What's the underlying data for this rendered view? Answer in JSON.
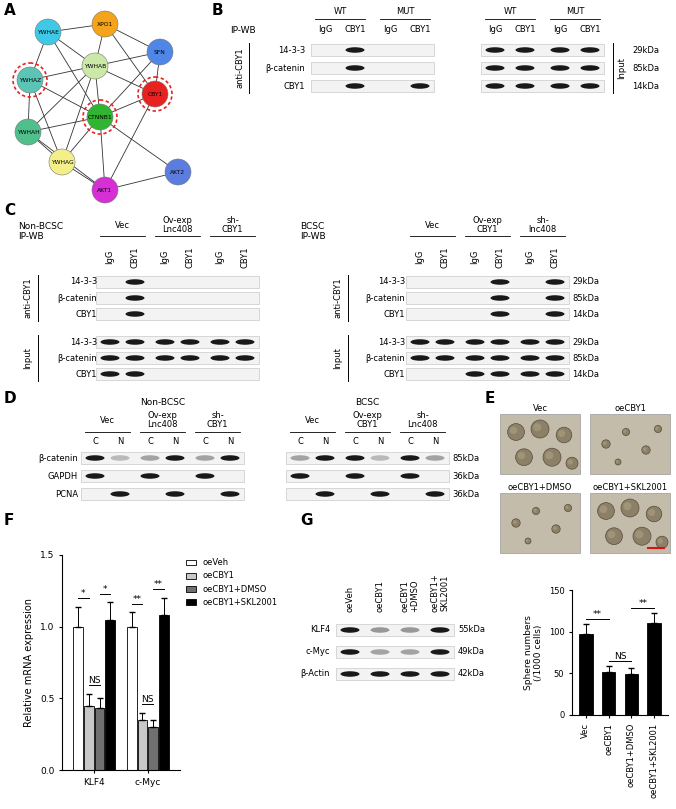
{
  "panel_letters": [
    "A",
    "B",
    "C",
    "D",
    "E",
    "F",
    "G"
  ],
  "network": {
    "nodes": [
      {
        "label": "YWHAE",
        "color": "#3ec9e6",
        "highlighted": false
      },
      {
        "label": "XPO1",
        "color": "#f5a31a",
        "highlighted": false
      },
      {
        "label": "SFN",
        "color": "#4f86e8",
        "highlighted": false
      },
      {
        "label": "YWHAZ",
        "color": "#5cc4b4",
        "highlighted": true
      },
      {
        "label": "YWHAB",
        "color": "#cbe8a8",
        "highlighted": false
      },
      {
        "label": "CBY1",
        "color": "#e8231f",
        "highlighted": true
      },
      {
        "label": "YWHAH",
        "color": "#4fc08c",
        "highlighted": false
      },
      {
        "label": "CTNNB1",
        "color": "#2fb52f",
        "highlighted": true
      },
      {
        "label": "YWHAG",
        "color": "#f3f08a",
        "highlighted": false
      },
      {
        "label": "AKT1",
        "color": "#d62fd6",
        "highlighted": false
      },
      {
        "label": "AKT2",
        "color": "#5b7de0",
        "highlighted": false
      }
    ],
    "edges": [
      [
        "YWHAE",
        "XPO1"
      ],
      [
        "YWHAE",
        "YWHAZ"
      ],
      [
        "YWHAE",
        "YWHAB"
      ],
      [
        "YWHAE",
        "CTNNB1"
      ],
      [
        "XPO1",
        "SFN"
      ],
      [
        "XPO1",
        "YWHAB"
      ],
      [
        "XPO1",
        "CBY1"
      ],
      [
        "SFN",
        "CBY1"
      ],
      [
        "SFN",
        "YWHAB"
      ],
      [
        "SFN",
        "CTNNB1"
      ],
      [
        "YWHAZ",
        "YWHAB"
      ],
      [
        "YWHAZ",
        "YWHAH"
      ],
      [
        "YWHAZ",
        "CTNNB1"
      ],
      [
        "YWHAZ",
        "YWHAG"
      ],
      [
        "YWHAB",
        "CBY1"
      ],
      [
        "YWHAB",
        "CTNNB1"
      ],
      [
        "YWHAB",
        "YWHAH"
      ],
      [
        "YWHAB",
        "YWHAG"
      ],
      [
        "CBY1",
        "CTNNB1"
      ],
      [
        "CBY1",
        "AKT1"
      ],
      [
        "YWHAH",
        "CTNNB1"
      ],
      [
        "YWHAH",
        "YWHAG"
      ],
      [
        "YWHAH",
        "AKT1"
      ],
      [
        "CTNNB1",
        "YWHAG"
      ],
      [
        "CTNNB1",
        "AKT1"
      ],
      [
        "CTNNB1",
        "AKT2"
      ],
      [
        "YWHAG",
        "AKT1"
      ],
      [
        "AKT1",
        "AKT2"
      ]
    ]
  },
  "panel_B": {
    "title": "IP-WB",
    "ip": {
      "label": "anti-CBY1",
      "groups": [
        "WT",
        "MUT"
      ],
      "lanes": [
        "IgG",
        "CBY1",
        "IgG",
        "CBY1"
      ],
      "rows": [
        {
          "name": "14-3-3",
          "bands": [
            0,
            1,
            0,
            0
          ]
        },
        {
          "name": "β-catenin",
          "bands": [
            0,
            1,
            0,
            0
          ]
        },
        {
          "name": "CBY1",
          "bands": [
            0,
            1,
            0,
            1
          ]
        }
      ]
    },
    "input": {
      "label": "Input",
      "groups": [
        "WT",
        "MUT"
      ],
      "lanes": [
        "IgG",
        "CBY1",
        "IgG",
        "CBY1"
      ],
      "rows": [
        {
          "kda": "29kDa",
          "bands": [
            1,
            1,
            1,
            1
          ]
        },
        {
          "kda": "85kDa",
          "bands": [
            1,
            1,
            1,
            1
          ]
        },
        {
          "kda": "14kDa",
          "bands": [
            1,
            1,
            1,
            1
          ]
        }
      ]
    }
  },
  "panel_C": {
    "left": {
      "title": "Non-BCSC\nIP-WB",
      "groups": [
        "Vec",
        "Ov-exp\nLnc408",
        "sh-\nCBY1"
      ],
      "lanes": [
        "IgG",
        "CBY1",
        "IgG",
        "CBY1",
        "IgG",
        "CBY1"
      ],
      "ip": {
        "label": "anti-CBY1",
        "rows": [
          {
            "name": "14-3-3",
            "bands": [
              0,
              1,
              0,
              0,
              0,
              0
            ]
          },
          {
            "name": "β-catenin",
            "bands": [
              0,
              1,
              0,
              0,
              0,
              0
            ]
          },
          {
            "name": "CBY1",
            "bands": [
              0,
              1,
              0,
              0,
              0,
              0
            ]
          }
        ]
      },
      "input": {
        "label": "Input",
        "rows": [
          {
            "name": "14-3-3",
            "bands": [
              1,
              1,
              1,
              1,
              1,
              1
            ]
          },
          {
            "name": "β-catenin",
            "bands": [
              1,
              1,
              1,
              1,
              1,
              1
            ]
          },
          {
            "name": "CBY1",
            "bands": [
              1,
              1,
              0,
              0,
              0,
              0
            ]
          }
        ]
      }
    },
    "right": {
      "title": "BCSC\nIP-WB",
      "groups": [
        "Vec",
        "Ov-exp\nCBY1",
        "sh-\nlnc408"
      ],
      "lanes": [
        "IgG",
        "CBY1",
        "IgG",
        "CBY1",
        "IgG",
        "CBY1"
      ],
      "ip": {
        "label": "anti-CBY1",
        "rows": [
          {
            "name": "14-3-3",
            "kda": "29kDa",
            "bands": [
              0,
              0,
              0,
              1,
              0,
              1
            ]
          },
          {
            "name": "β-catenin",
            "kda": "85kDa",
            "bands": [
              0,
              0,
              0,
              1,
              0,
              1
            ]
          },
          {
            "name": "CBY1",
            "kda": "14kDa",
            "bands": [
              0,
              0,
              0,
              1,
              0,
              1
            ]
          }
        ]
      },
      "input": {
        "label": "Input",
        "rows": [
          {
            "name": "14-3-3",
            "kda": "29kDa",
            "bands": [
              1,
              1,
              1,
              1,
              1,
              1
            ]
          },
          {
            "name": "β-catenin",
            "kda": "85kDa",
            "bands": [
              1,
              1,
              1,
              1,
              1,
              1
            ]
          },
          {
            "name": "CBY1",
            "kda": "14kDa",
            "bands": [
              0,
              0,
              1,
              1,
              1,
              1
            ]
          }
        ]
      }
    }
  },
  "panel_D": {
    "left": {
      "title": "Non-BCSC",
      "groups": [
        "Vec",
        "Ov-exp\nLnc408",
        "sh-\nCBY1"
      ],
      "lanes": [
        "C",
        "N",
        "C",
        "N",
        "C",
        "N"
      ],
      "rows": [
        {
          "name": "β-catenin",
          "bands": [
            1,
            0.3,
            0.4,
            1,
            0.4,
            1
          ]
        },
        {
          "name": "GAPDH",
          "bands": [
            1,
            0,
            1,
            0,
            1,
            0
          ]
        },
        {
          "name": "PCNA",
          "bands": [
            0,
            1,
            0,
            1,
            0,
            1
          ]
        }
      ]
    },
    "right": {
      "title": "BCSC",
      "groups": [
        "Vec",
        "Ov-exp\nCBY1",
        "sh-\nLnc408"
      ],
      "lanes": [
        "C",
        "N",
        "C",
        "N",
        "C",
        "N"
      ],
      "rows": [
        {
          "kda": "85kDa",
          "bands": [
            0.4,
            1,
            1,
            0.3,
            1,
            0.4
          ]
        },
        {
          "kda": "36kDa",
          "bands": [
            1,
            0,
            1,
            0,
            1,
            0
          ]
        },
        {
          "kda": "36kDa",
          "bands": [
            0,
            1,
            0,
            1,
            0,
            1
          ]
        }
      ]
    }
  },
  "panel_E_images": [
    "Vec",
    "oeCBY1",
    "oeCBY1+DMSO",
    "oeCBY1+SKL2001"
  ],
  "panel_G": {
    "lanes": [
      "oeVeh",
      "oeCBY1",
      "oeCBY1\n+DMSO",
      "oeCBY1+\nSKL2001"
    ],
    "rows": [
      {
        "name": "KLF4",
        "kda": "55kDa",
        "bands": [
          1,
          0.45,
          0.45,
          1
        ]
      },
      {
        "name": "c-Myc",
        "kda": "49kDa",
        "bands": [
          1,
          0.4,
          0.4,
          1
        ]
      },
      {
        "name": "β-Actin",
        "kda": "42kDa",
        "bands": [
          1,
          1,
          1,
          1
        ]
      }
    ]
  },
  "chart_data": [
    {
      "type": "bar",
      "categories": [
        "Vec",
        "oeCBY1",
        "oeCBY1+DMSO",
        "oeCBY1+SKL2001"
      ],
      "values": [
        97,
        52,
        49,
        110
      ],
      "errors": [
        12,
        7,
        7,
        12
      ],
      "color": "#000000",
      "y_label": "Sphere numbers\n(/1000 cells)",
      "ylim": [
        0,
        150
      ],
      "yticks": [
        0,
        50,
        100,
        150
      ],
      "significance": [
        {
          "between": [
            "Vec",
            "oeCBY1"
          ],
          "label": "**"
        },
        {
          "between": [
            "oeCBY1",
            "oeCBY1+DMSO"
          ],
          "label": "NS"
        },
        {
          "between": [
            "oeCBY1+DMSO",
            "oeCBY1+SKL2001"
          ],
          "label": "**"
        }
      ]
    },
    {
      "type": "bar",
      "categories": [
        "KLF4",
        "c-Myc"
      ],
      "series": [
        {
          "name": "oeVeh",
          "color": "#ffffff",
          "values": [
            1.0,
            1.0
          ],
          "errors": [
            0.14,
            0.1
          ]
        },
        {
          "name": "oeCBY1",
          "color": "#c8c8c8",
          "values": [
            0.45,
            0.35
          ],
          "errors": [
            0.08,
            0.05
          ]
        },
        {
          "name": "oeCBY1+DMSO",
          "color": "#707070",
          "values": [
            0.43,
            0.3
          ],
          "errors": [
            0.07,
            0.05
          ]
        },
        {
          "name": "oeCBY1+SKL2001",
          "color": "#000000",
          "values": [
            1.05,
            1.08
          ],
          "errors": [
            0.12,
            0.12
          ]
        }
      ],
      "y_label": "Relative mRNA expression",
      "ylim": [
        0,
        1.5
      ],
      "yticks": [
        {
          "value": 0,
          "label": "0.0"
        },
        {
          "value": 0.5,
          "label": "0.5"
        },
        {
          "value": 1.0,
          "label": "1.0"
        },
        {
          "value": 1.5,
          "label": "1.5"
        }
      ],
      "legend": "upper left",
      "significance": [
        {
          "category": "KLF4",
          "between": [
            "oeVeh",
            "oeCBY1"
          ],
          "label": "*"
        },
        {
          "category": "KLF4",
          "between": [
            "oeCBY1",
            "oeCBY1+DMSO"
          ],
          "label": "NS"
        },
        {
          "category": "KLF4",
          "between": [
            "oeCBY1+DMSO",
            "oeCBY1+SKL2001"
          ],
          "label": "*"
        },
        {
          "category": "c-Myc",
          "between": [
            "oeVeh",
            "oeCBY1"
          ],
          "label": "**"
        },
        {
          "category": "c-Myc",
          "between": [
            "oeCBY1",
            "oeCBY1+DMSO"
          ],
          "label": "NS"
        },
        {
          "category": "c-Myc",
          "between": [
            "oeCBY1+DMSO",
            "oeCBY1+SKL2001"
          ],
          "label": "**"
        }
      ]
    }
  ]
}
